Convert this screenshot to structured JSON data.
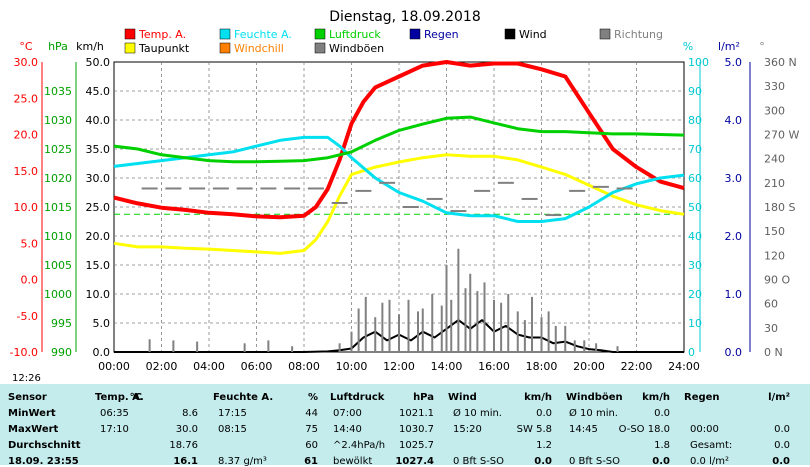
{
  "chart_data": {
    "type": "line",
    "title": "Dienstag, 18.09.2018",
    "x_ticks": [
      "00:00",
      "02:00",
      "04:00",
      "06:00",
      "08:00",
      "10:00",
      "12:00",
      "14:00",
      "16:00",
      "18:00",
      "20:00",
      "22:00",
      "24:00"
    ],
    "x_range": [
      0,
      24
    ],
    "axes": {
      "temp": {
        "unit": "°C",
        "ticks": [
          "30.0",
          "25.0",
          "20.0",
          "15.0",
          "10.0",
          "5.0",
          "0.0",
          "-5.0",
          "-10.0"
        ],
        "range": [
          -10,
          30
        ],
        "color": "#ff0000"
      },
      "pressure": {
        "unit": "hPa",
        "ticks": [
          "1035",
          "1030",
          "1025",
          "1020",
          "1015",
          "1010",
          "1005",
          "1000",
          "995",
          "990"
        ],
        "range": [
          990,
          1040
        ],
        "color": "#00a000"
      },
      "wind": {
        "unit": "km/h",
        "ticks": [
          "50.0",
          "45.0",
          "40.0",
          "35.0",
          "30.0",
          "25.0",
          "20.0",
          "15.0",
          "10.0",
          "5.0",
          "0.0"
        ],
        "range": [
          0,
          50
        ],
        "color": "#000000"
      },
      "humidity": {
        "unit": "%",
        "ticks": [
          "100",
          "90",
          "80",
          "70",
          "60",
          "50",
          "40",
          "30",
          "20",
          "10",
          "0"
        ],
        "range": [
          0,
          100
        ],
        "color": "#00c8d0"
      },
      "rain": {
        "unit": "l/m²",
        "ticks": [
          "5.0",
          "4.0",
          "3.0",
          "2.0",
          "1.0",
          "0.0"
        ],
        "range": [
          0,
          5
        ],
        "color": "#0000a0"
      },
      "direction": {
        "unit": "°",
        "ticks": [
          "360 N",
          "330",
          "300",
          "270 W",
          "240",
          "210",
          "180 S",
          "150",
          "120",
          "90 O",
          "60",
          "30",
          "0 N"
        ],
        "range": [
          0,
          360
        ],
        "color": "#808080"
      }
    },
    "legend": [
      {
        "name": "Temp. A.",
        "color": "#ff0000"
      },
      {
        "name": "Feuchte A.",
        "color": "#00e0f0"
      },
      {
        "name": "Luftdruck",
        "color": "#00d000"
      },
      {
        "name": "Regen",
        "color": "#0000a0"
      },
      {
        "name": "Wind",
        "color": "#000000"
      },
      {
        "name": "Richtung",
        "color": "#808080"
      },
      {
        "name": "Taupunkt",
        "color": "#ffff00"
      },
      {
        "name": "Windchill",
        "color": "#ff8000"
      },
      {
        "name": "Windböen",
        "color": "#808080"
      }
    ],
    "series": [
      {
        "name": "Temp. A.",
        "axis": "temp",
        "color": "#ff0000",
        "x": [
          0,
          1,
          2,
          3,
          4,
          5,
          6,
          7,
          8,
          8.5,
          9,
          9.5,
          10,
          10.5,
          11,
          12,
          13,
          14,
          15,
          16,
          17,
          18,
          19,
          20,
          21,
          22,
          23,
          24
        ],
        "y": [
          11.3,
          10.5,
          9.9,
          9.6,
          9.2,
          9.0,
          8.7,
          8.6,
          8.8,
          10,
          12.5,
          16.5,
          21.5,
          24.5,
          26.5,
          28,
          29.5,
          30,
          29.5,
          29.8,
          29.8,
          29.0,
          28,
          23,
          18,
          15.5,
          13.5,
          12.6
        ]
      },
      {
        "name": "Taupunkt",
        "axis": "temp",
        "color": "#ffff00",
        "x": [
          0,
          1,
          2,
          3,
          4,
          5,
          6,
          7,
          8,
          8.5,
          9,
          9.5,
          10,
          11,
          12,
          13,
          14,
          15,
          16,
          17,
          18,
          19,
          20,
          21,
          22,
          23,
          24
        ],
        "y": [
          5.0,
          4.5,
          4.5,
          4.3,
          4.2,
          4.0,
          3.8,
          3.6,
          4.0,
          5.5,
          8.0,
          11.5,
          14.5,
          15.5,
          16.2,
          16.8,
          17.2,
          17.0,
          17.0,
          16.5,
          15.5,
          14.5,
          13.0,
          11.5,
          10.3,
          9.5,
          9.0
        ]
      },
      {
        "name": "Feuchte A.",
        "axis": "humidity",
        "color": "#00e0f0",
        "x": [
          0,
          1,
          2,
          3,
          4,
          5,
          6,
          7,
          8,
          9,
          9.5,
          10,
          11,
          12,
          13,
          14,
          15,
          16,
          17,
          18,
          19,
          20,
          21,
          22,
          23,
          24
        ],
        "y": [
          64,
          65,
          66,
          67,
          68,
          69,
          71,
          73,
          74,
          74,
          71,
          67,
          60,
          55,
          52,
          48,
          47,
          47,
          45,
          45,
          46,
          50,
          55,
          58,
          60,
          61
        ]
      },
      {
        "name": "Luftdruck",
        "axis": "pressure",
        "color": "#00d000",
        "x": [
          0,
          1,
          2,
          3,
          4,
          5,
          6,
          7,
          8,
          9,
          10,
          11,
          12,
          13,
          14,
          15,
          16,
          17,
          18,
          19,
          20,
          21,
          22,
          23,
          24
        ],
        "y": [
          1025.5,
          1025,
          1024,
          1023.5,
          1023,
          1022.8,
          1022.8,
          1022.9,
          1023,
          1023.5,
          1024.5,
          1026.5,
          1028.2,
          1029.3,
          1030.3,
          1030.5,
          1029.5,
          1028.5,
          1028,
          1028,
          1027.8,
          1027.6,
          1027.6,
          1027.5,
          1027.4
        ]
      },
      {
        "name": "Wind",
        "axis": "wind",
        "color": "#000000",
        "x": [
          0,
          2,
          4,
          6,
          8,
          9,
          9.5,
          10,
          10.5,
          11,
          11.5,
          12,
          12.5,
          13,
          13.5,
          14,
          14.5,
          15,
          15.5,
          16,
          16.5,
          17,
          17.5,
          18,
          18.5,
          19,
          19.5,
          20,
          20.5,
          21,
          22,
          24
        ],
        "y": [
          0,
          0,
          0,
          0,
          0,
          0.1,
          0.3,
          0.6,
          2.5,
          3.5,
          2.0,
          3.0,
          2.0,
          3.5,
          2.5,
          4.0,
          5.5,
          4.0,
          5.5,
          3.5,
          4.5,
          3.0,
          2.5,
          2.5,
          1.5,
          1.8,
          1.0,
          0.5,
          0.3,
          0,
          0,
          0
        ]
      },
      {
        "name": "Windböen",
        "axis": "wind",
        "color": "#808080",
        "x": [
          1.5,
          2.5,
          3.5,
          5.5,
          6.5,
          7.5,
          9.5,
          10,
          10.3,
          10.6,
          11,
          11.3,
          11.6,
          12,
          12.4,
          12.8,
          13,
          13.4,
          13.8,
          14,
          14.2,
          14.5,
          14.8,
          15,
          15.3,
          15.6,
          16,
          16.3,
          16.6,
          17,
          17.3,
          17.6,
          18,
          18.3,
          18.6,
          19,
          19.4,
          19.8,
          20.3,
          21.2
        ],
        "y": [
          2.2,
          2.0,
          1.8,
          1.5,
          2.0,
          1.0,
          1.5,
          3.5,
          7.5,
          9.5,
          6.0,
          8.5,
          9.0,
          6.5,
          9.0,
          7.0,
          7.5,
          10.0,
          8.0,
          15.0,
          9.0,
          17.8,
          11.0,
          13.5,
          10.5,
          12.0,
          9.0,
          8.5,
          10.0,
          7.0,
          5.5,
          9.5,
          6.0,
          7.0,
          4.5,
          4.5,
          2.0,
          2.0,
          1.5,
          1.0
        ]
      },
      {
        "name": "Richtung",
        "axis": "direction",
        "color": "#808080",
        "x": [
          1.5,
          2.5,
          3.5,
          4.5,
          5.5,
          6.5,
          7.5,
          8.5,
          9.5,
          10.5,
          11.5,
          12.5,
          13.5,
          14.5,
          15.5,
          16.5,
          17.5,
          18.5,
          19.5,
          20.5,
          21.5
        ],
        "y": [
          203,
          203,
          203,
          203,
          203,
          203,
          203,
          203,
          185,
          200,
          210,
          180,
          190,
          175,
          200,
          210,
          190,
          170,
          200,
          205,
          203
        ]
      }
    ],
    "reference_line": {
      "axis": "temp",
      "value": 9.0,
      "color": "#00d000",
      "style": "dashed"
    },
    "time_label": "12:26"
  },
  "stats": {
    "header": [
      "Sensor",
      "Temp. A.",
      "°C",
      "Feuchte A.",
      "%",
      "Luftdruck",
      "hPa",
      "Wind",
      "km/h",
      "Windböen",
      "km/h",
      "Regen",
      "l/m²"
    ],
    "rows": [
      {
        "label": "MinWert",
        "temp_time": "06:35",
        "temp": "8.6",
        "hum_time": "17:15",
        "hum": "44",
        "press_time": "07:00",
        "press": "1021.1",
        "wind_info": "Ø 10 min.",
        "wind": "0.0",
        "gust_info": "Ø 10 min.",
        "gust": "0.0",
        "rain_info": "",
        "rain": ""
      },
      {
        "label": "MaxWert",
        "temp_time": "17:10",
        "temp": "30.0",
        "hum_time": "08:15",
        "hum": "75",
        "press_time": "14:40",
        "press": "1030.7",
        "wind_info": "15:20",
        "wind": "SW 5.8",
        "gust_info": "14:45",
        "gust": "O-SO 18.0",
        "rain_info": "00:00",
        "rain": "0.0"
      },
      {
        "label": "Durchschnitt",
        "temp_time": "",
        "temp": "18.76",
        "hum_time": "",
        "hum": "60",
        "press_time": "^2.4hPa/h",
        "press": "1025.7",
        "wind_info": "",
        "wind": "1.2",
        "gust_info": "",
        "gust": "1.8",
        "rain_info": "Gesamt:",
        "rain": "0.0"
      },
      {
        "label": "18.09. 23:55",
        "temp_time": "",
        "temp": "16.1",
        "hum_time": "8.37 g/m³",
        "hum": "61",
        "press_time": "bewölkt",
        "press": "1027.4",
        "wind_info": "0 Bft S-SO",
        "wind": "0.0",
        "gust_info": "0 Bft S-SO",
        "gust": "0.0",
        "rain_info": "0.0 l/m²",
        "rain": "0.0"
      }
    ]
  }
}
